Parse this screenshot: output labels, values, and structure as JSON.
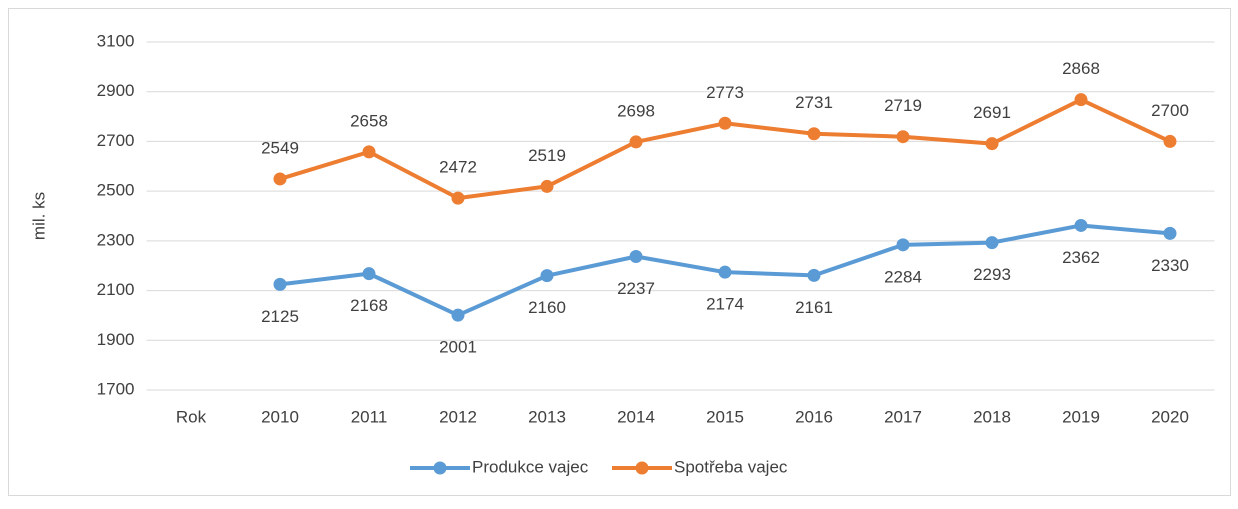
{
  "chart_data": {
    "type": "line",
    "categories": [
      "Rok",
      "2010",
      "2011",
      "2012",
      "2013",
      "2014",
      "2015",
      "2016",
      "2017",
      "2018",
      "2019",
      "2020"
    ],
    "series": [
      {
        "name": "Produkce vajec",
        "color": "#5b9bd5",
        "values": [
          null,
          2125,
          2168,
          2001,
          2160,
          2237,
          2174,
          2161,
          2284,
          2293,
          2362,
          2330
        ]
      },
      {
        "name": "Spotřeba vajec",
        "color": "#ed7d31",
        "values": [
          null,
          2549,
          2658,
          2472,
          2519,
          2698,
          2773,
          2731,
          2719,
          2691,
          2868,
          2700
        ]
      }
    ],
    "y_label": "mil. ks",
    "ylim": [
      1700,
      3100
    ],
    "yticks": [
      1700,
      1900,
      2100,
      2300,
      2500,
      2700,
      2900,
      3100
    ],
    "grid": true,
    "legend": "bottom"
  }
}
